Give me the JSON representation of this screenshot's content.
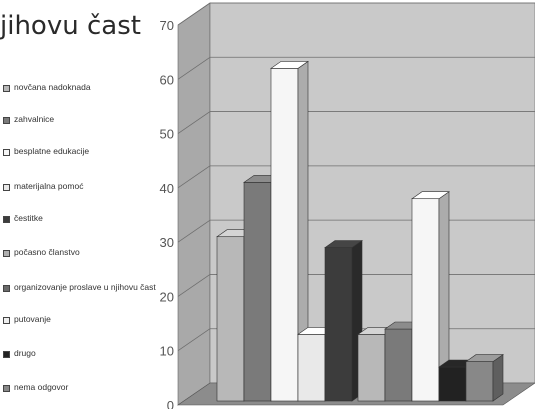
{
  "title_fragment": "jihovu čast",
  "colors": {
    "back_wall": "#c9c9c9",
    "side_wall": "#a9a9a9",
    "floor": "#8c8c8c",
    "grid": "#6e6e6e"
  },
  "chart_data": {
    "type": "bar",
    "ylim": [
      0,
      70
    ],
    "yticks": [
      "0",
      "10",
      "20",
      "30",
      "40",
      "50",
      "60",
      "70"
    ],
    "series": [
      {
        "name": "novčana nadoknada",
        "color": "#b8b8b8",
        "values": [
          31,
          13
        ]
      },
      {
        "name": "zahvalnice",
        "color": "#7a7a7a",
        "values": [
          41,
          14
        ]
      },
      {
        "name": "besplatne edukacije",
        "color": "#f6f6f6",
        "values": [
          62,
          38
        ]
      },
      {
        "name": "materijalna pomoć",
        "color": "#e9e9e9",
        "values": [
          13,
          null
        ]
      },
      {
        "name": "čestitke",
        "color": "#3c3c3c",
        "values": [
          29,
          null
        ]
      },
      {
        "name": "počasno članstvo",
        "color": "#b0b0b0",
        "values": [
          null,
          null
        ]
      },
      {
        "name": "organizovanje proslave u njihovu čast",
        "color": "#6a6a6a",
        "values": [
          null,
          null
        ]
      },
      {
        "name": "putovanje",
        "color": "#efefef",
        "values": [
          null,
          null
        ]
      },
      {
        "name": "drugo",
        "color": "#222222",
        "values": [
          null,
          7
        ]
      },
      {
        "name": "nema odgovor",
        "color": "#888888",
        "values": [
          null,
          8
        ]
      }
    ],
    "legend": [
      "novčana nadoknada",
      "zahvalnice",
      "besplatne edukacije",
      "materijalna pomoć",
      "čestitke",
      "počasno članstvo",
      "organizovanje proslave u njihovu čast",
      "putovanje",
      "drugo",
      "nema odgovor"
    ]
  }
}
